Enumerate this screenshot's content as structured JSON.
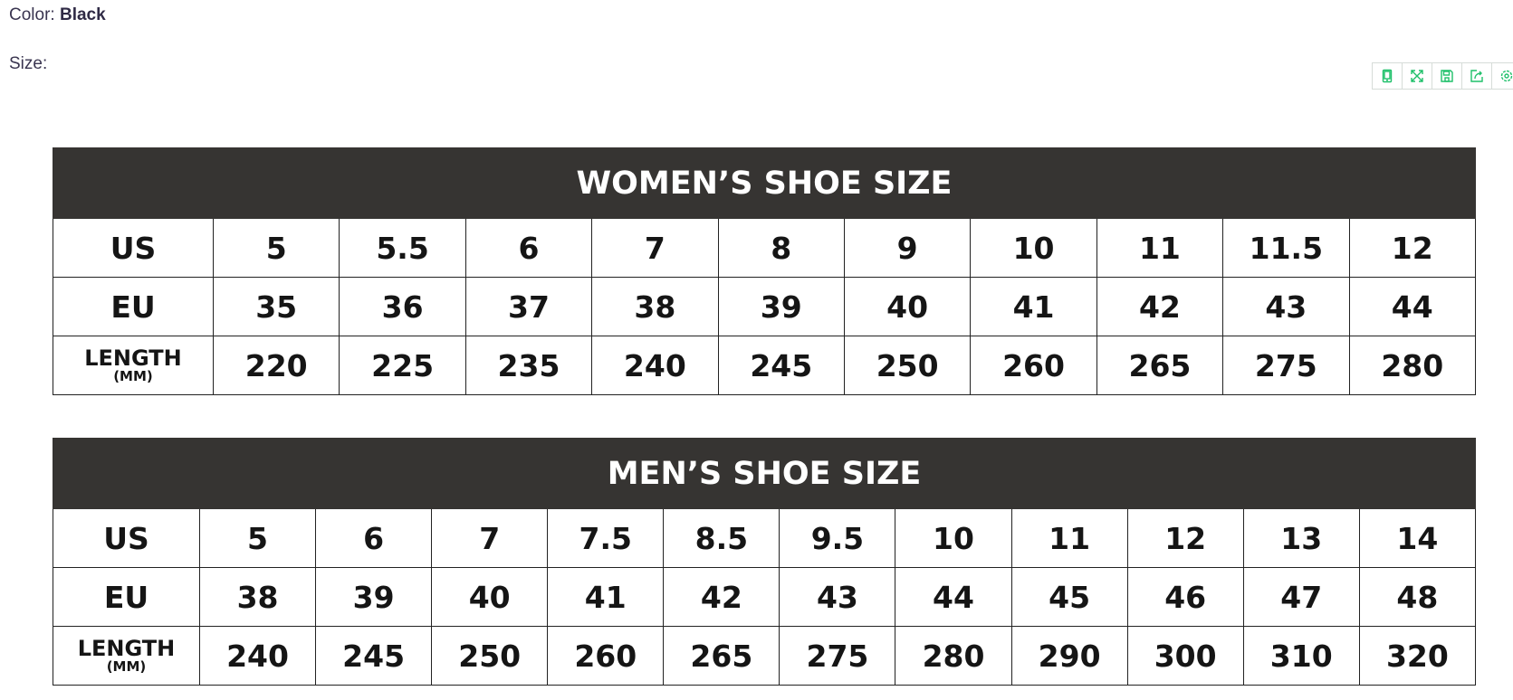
{
  "product": {
    "color_label": "Color:",
    "color_value": "Black",
    "size_label": "Size:"
  },
  "toolbar": {
    "icons": [
      "tablet-icon",
      "expand-icon",
      "save-icon",
      "share-icon",
      "settings-icon"
    ],
    "accent": "#1fc06a"
  },
  "women": {
    "title": "WOMEN’S SHOE SIZE",
    "row_labels": {
      "us": "US",
      "eu": "EU",
      "length": "LENGTH",
      "length_unit": "(MM)"
    },
    "us": [
      "5",
      "5.5",
      "6",
      "7",
      "8",
      "9",
      "10",
      "11",
      "11.5",
      "12"
    ],
    "eu": [
      "35",
      "36",
      "37",
      "38",
      "39",
      "40",
      "41",
      "42",
      "43",
      "44"
    ],
    "length": [
      "220",
      "225",
      "235",
      "240",
      "245",
      "250",
      "260",
      "265",
      "275",
      "280"
    ]
  },
  "men": {
    "title": "MEN’S SHOE SIZE",
    "row_labels": {
      "us": "US",
      "eu": "EU",
      "length": "LENGTH",
      "length_unit": "(MM)"
    },
    "us": [
      "5",
      "6",
      "7",
      "7.5",
      "8.5",
      "9.5",
      "10",
      "11",
      "12",
      "13",
      "14"
    ],
    "eu": [
      "38",
      "39",
      "40",
      "41",
      "42",
      "43",
      "44",
      "45",
      "46",
      "47",
      "48"
    ],
    "length": [
      "240",
      "245",
      "250",
      "260",
      "265",
      "275",
      "280",
      "290",
      "300",
      "310",
      "320"
    ]
  }
}
